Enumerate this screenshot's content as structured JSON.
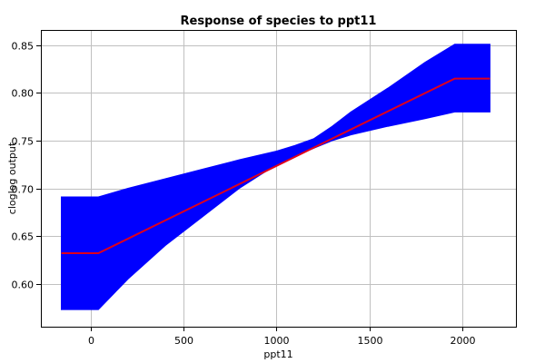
{
  "chart_data": {
    "type": "area",
    "title": "Response of species to ppt11",
    "xlabel": "ppt11",
    "ylabel": "cloglog output",
    "xlim": [
      -270,
      2290
    ],
    "ylim": [
      0.555,
      0.866
    ],
    "xticks": [
      0,
      500,
      1000,
      1500,
      2000
    ],
    "yticks": [
      0.6,
      0.65,
      0.7,
      0.75,
      0.8,
      0.85
    ],
    "ytick_labels": [
      "0.60",
      "0.65",
      "0.70",
      "0.75",
      "0.80",
      "0.85"
    ],
    "grid": true,
    "series": [
      {
        "role": "band",
        "color": "#0000ff",
        "x": [
          -160,
          40,
          200,
          400,
          600,
          800,
          1000,
          1100,
          1200,
          1300,
          1400,
          1600,
          1800,
          1960,
          2150
        ],
        "upper": [
          0.691,
          0.691,
          0.7,
          0.71,
          0.72,
          0.73,
          0.739,
          0.745,
          0.752,
          0.765,
          0.78,
          0.805,
          0.832,
          0.851,
          0.851
        ],
        "lower": [
          0.573,
          0.573,
          0.605,
          0.64,
          0.67,
          0.7,
          0.725,
          0.734,
          0.742,
          0.75,
          0.756,
          0.765,
          0.773,
          0.78,
          0.78
        ]
      },
      {
        "role": "line",
        "color": "#e0001b",
        "x": [
          -160,
          40,
          1960,
          2150
        ],
        "values": [
          0.632,
          0.632,
          0.815,
          0.815
        ]
      }
    ]
  }
}
